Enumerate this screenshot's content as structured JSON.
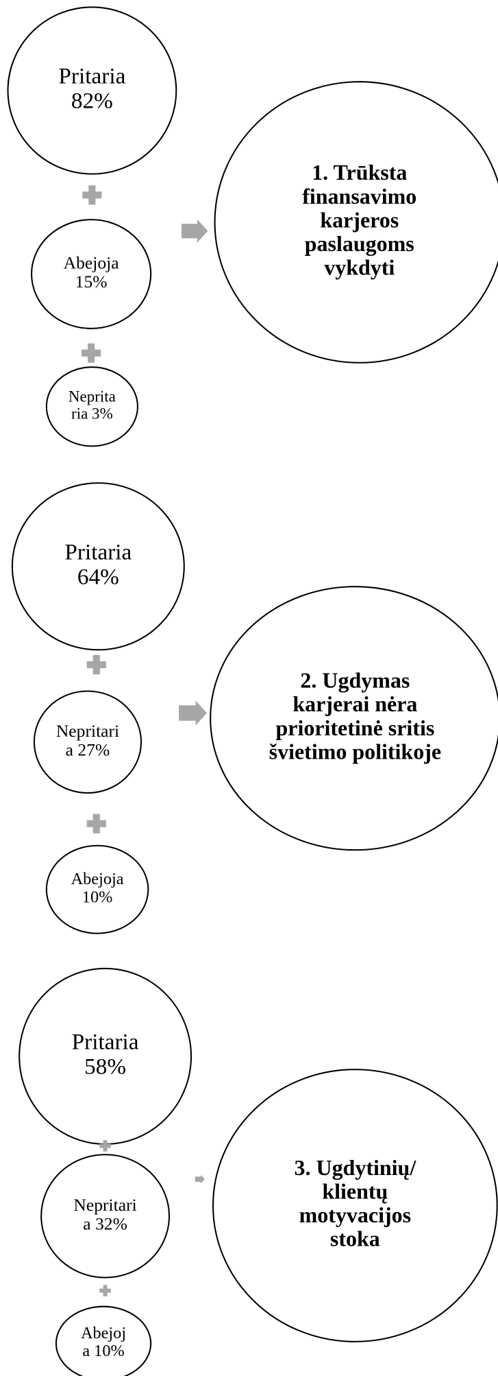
{
  "groups": [
    {
      "nodes": [
        {
          "lines": [
            "Pritaria",
            "82%"
          ]
        },
        {
          "lines": [
            "Abejoja",
            "15%"
          ]
        },
        {
          "lines": [
            "Neprita",
            "ria 3%"
          ]
        }
      ],
      "result": {
        "lines": [
          "1. Trūksta",
          "finansavimo",
          "karjeros",
          "paslaugoms",
          "vykdyti"
        ]
      }
    },
    {
      "nodes": [
        {
          "lines": [
            "Pritaria",
            "64%"
          ]
        },
        {
          "lines": [
            "Nepritari",
            "a 27%"
          ]
        },
        {
          "lines": [
            "Abejoja",
            "10%"
          ]
        }
      ],
      "result": {
        "lines": [
          "2. Ugdymas",
          "karjerai nėra",
          "prioritetinė sritis",
          "švietimo politikoje"
        ]
      }
    },
    {
      "nodes": [
        {
          "lines": [
            "Pritaria",
            "58%"
          ]
        },
        {
          "lines": [
            "Nepritari",
            "a 32%"
          ]
        },
        {
          "lines": [
            "Abejoj",
            "a 10%"
          ]
        }
      ],
      "result": {
        "lines": [
          "3. Ugdytinių/",
          "klientų",
          "motyvacijos",
          "stoka"
        ]
      }
    }
  ]
}
